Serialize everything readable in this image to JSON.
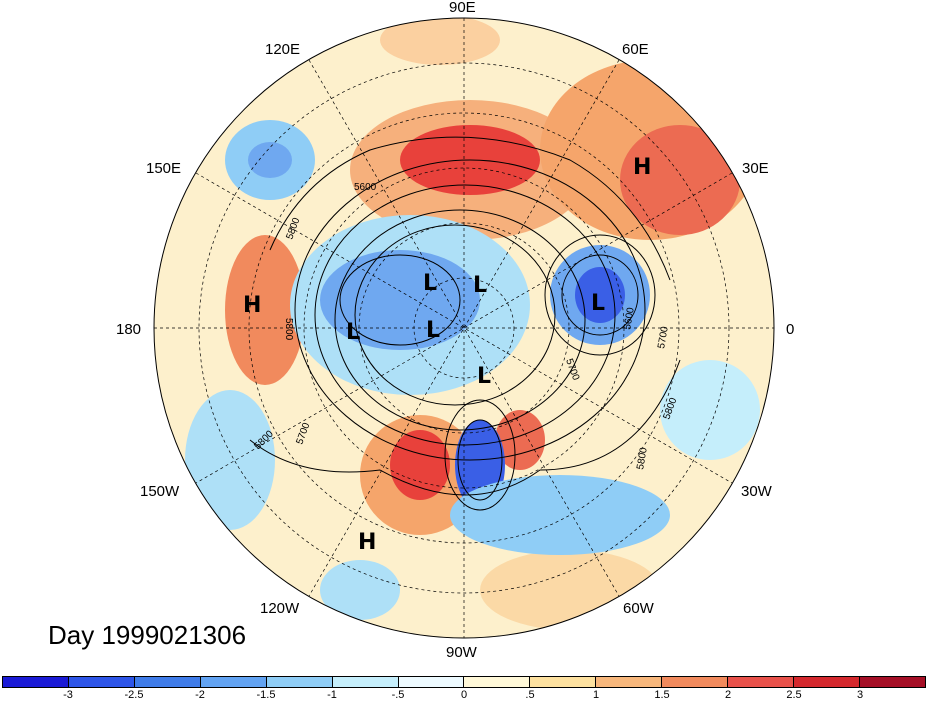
{
  "map": {
    "projection": "north-polar-stereographic",
    "date_label": "Day 1999021306",
    "longitude_labels": [
      "90E",
      "60E",
      "30E",
      "0",
      "30W",
      "60W",
      "90W",
      "120W",
      "150W",
      "180",
      "150E",
      "120E"
    ],
    "pressure_systems": [
      "H",
      "H",
      "H",
      "L",
      "L",
      "L",
      "L",
      "L",
      "L"
    ],
    "contour_labels": [
      "5600",
      "5800",
      "5800",
      "5700",
      "5800",
      "5600",
      "5700",
      "5700",
      "5800",
      "5800"
    ],
    "colors": {
      "strong_neg": "#3a5fe6",
      "neg": "#6fa8f0",
      "weak_neg": "#aee0f7",
      "weak_pos": "#fbe3a8",
      "pos": "#f5a56b",
      "strong_pos": "#e8413b"
    }
  },
  "colorbar": {
    "tick_labels": [
      "-3",
      "-2.5",
      "-2",
      "-1.5",
      "-1",
      "-.5",
      "0",
      ".5",
      "1",
      "1.5",
      "2",
      "2.5",
      "3"
    ],
    "colors": [
      "#1a1ad6",
      "#2d55e8",
      "#3f7ce9",
      "#62a3f2",
      "#8fcdf6",
      "#c5eefb",
      "#edfaff",
      "#fff8d8",
      "#fde1a0",
      "#f7b77c",
      "#f18a5d",
      "#e8514a",
      "#d4282d",
      "#a50f26"
    ]
  }
}
